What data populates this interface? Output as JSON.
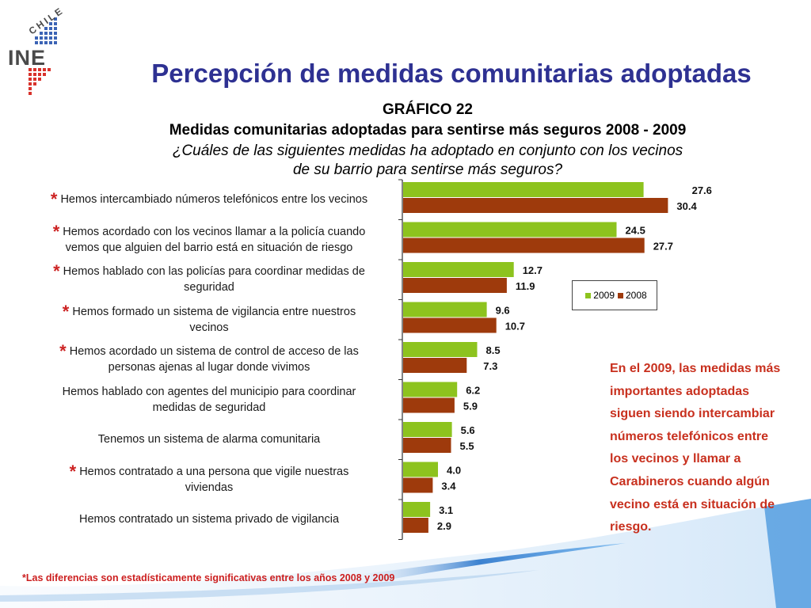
{
  "header": {
    "logo_word": "INE",
    "logo_country": "CHILE",
    "title": "Percepción de medidas comunitarias adoptadas"
  },
  "chart_data": {
    "type": "bar",
    "orientation": "horizontal",
    "chart_number": "GRÁFICO 22",
    "title": "Medidas comunitarias adoptadas para sentirse más seguros 2008 - 2009",
    "question_line1": "¿Cuáles de las siguientes medidas ha adoptado en conjunto con los vecinos",
    "question_line2": "de su barrio para sentirse más seguros?",
    "categories": [
      "Hemos intercambiado números telefónicos entre los vecinos",
      "Hemos acordado con los vecinos llamar a la policía cuando vemos que alguien del barrio está en situación de riesgo",
      "Hemos hablado con las policías para coordinar medidas de seguridad",
      "Hemos formado un sistema de vigilancia entre nuestros vecinos",
      "Hemos acordado un sistema de control de acceso de las personas ajenas al lugar donde vivimos",
      "Hemos hablado con agentes del municipio para coordinar medidas de seguridad",
      "Tenemos un sistema de alarma comunitaria",
      "Hemos contratado a una persona que vigile nuestras viviendas",
      "Hemos contratado un sistema privado de vigilancia"
    ],
    "category_lines": [
      [
        "Hemos intercambiado números telefónicos entre los vecinos"
      ],
      [
        "Hemos acordado con los vecinos llamar a la policía cuando",
        "vemos que alguien del barrio está en situación de riesgo"
      ],
      [
        "Hemos hablado con las policías para coordinar medidas de",
        "seguridad"
      ],
      [
        "Hemos formado un sistema de vigilancia entre nuestros",
        "vecinos"
      ],
      [
        "Hemos acordado un sistema de control de acceso de las",
        "personas ajenas al lugar donde vivimos"
      ],
      [
        "Hemos hablado con agentes del municipio para coordinar",
        "medidas de seguridad"
      ],
      [
        "Tenemos un sistema de alarma comunitaria"
      ],
      [
        "Hemos contratado a una persona que vigile nuestras",
        "viviendas"
      ],
      [
        "Hemos contratado un sistema privado de vigilancia"
      ]
    ],
    "significant": [
      true,
      true,
      true,
      true,
      true,
      false,
      false,
      true,
      false
    ],
    "significance_mark": "*",
    "series": [
      {
        "name": "2009",
        "color": "#8dc31e",
        "values": [
          27.6,
          24.5,
          12.7,
          9.6,
          8.5,
          6.2,
          5.6,
          4.0,
          3.1
        ]
      },
      {
        "name": "2008",
        "color": "#9e3a0c",
        "values": [
          30.4,
          27.7,
          11.9,
          10.7,
          7.3,
          5.9,
          5.5,
          3.4,
          2.9
        ]
      }
    ],
    "value_labels": [
      [
        "27.6",
        "24.5",
        "12.7",
        "9.6",
        "8.5",
        "6.2",
        "5.6",
        "4.0",
        "3.1"
      ],
      [
        "30.4",
        "27.7",
        "11.9",
        "10.7",
        "7.3",
        "5.9",
        "5.5",
        "3.4",
        "2.9"
      ]
    ],
    "xlim": [
      0,
      35
    ],
    "grid": false,
    "legend_position": "right"
  },
  "side_note": "En el 2009, las medidas más importantes adoptadas siguen siendo intercambiar números telefónicos entre los vecinos y llamar a Carabineros cuando algún vecino está en situación de riesgo.",
  "footnote": "*Las diferencias son estadísticamente significativas entre los años 2008 y 2009"
}
